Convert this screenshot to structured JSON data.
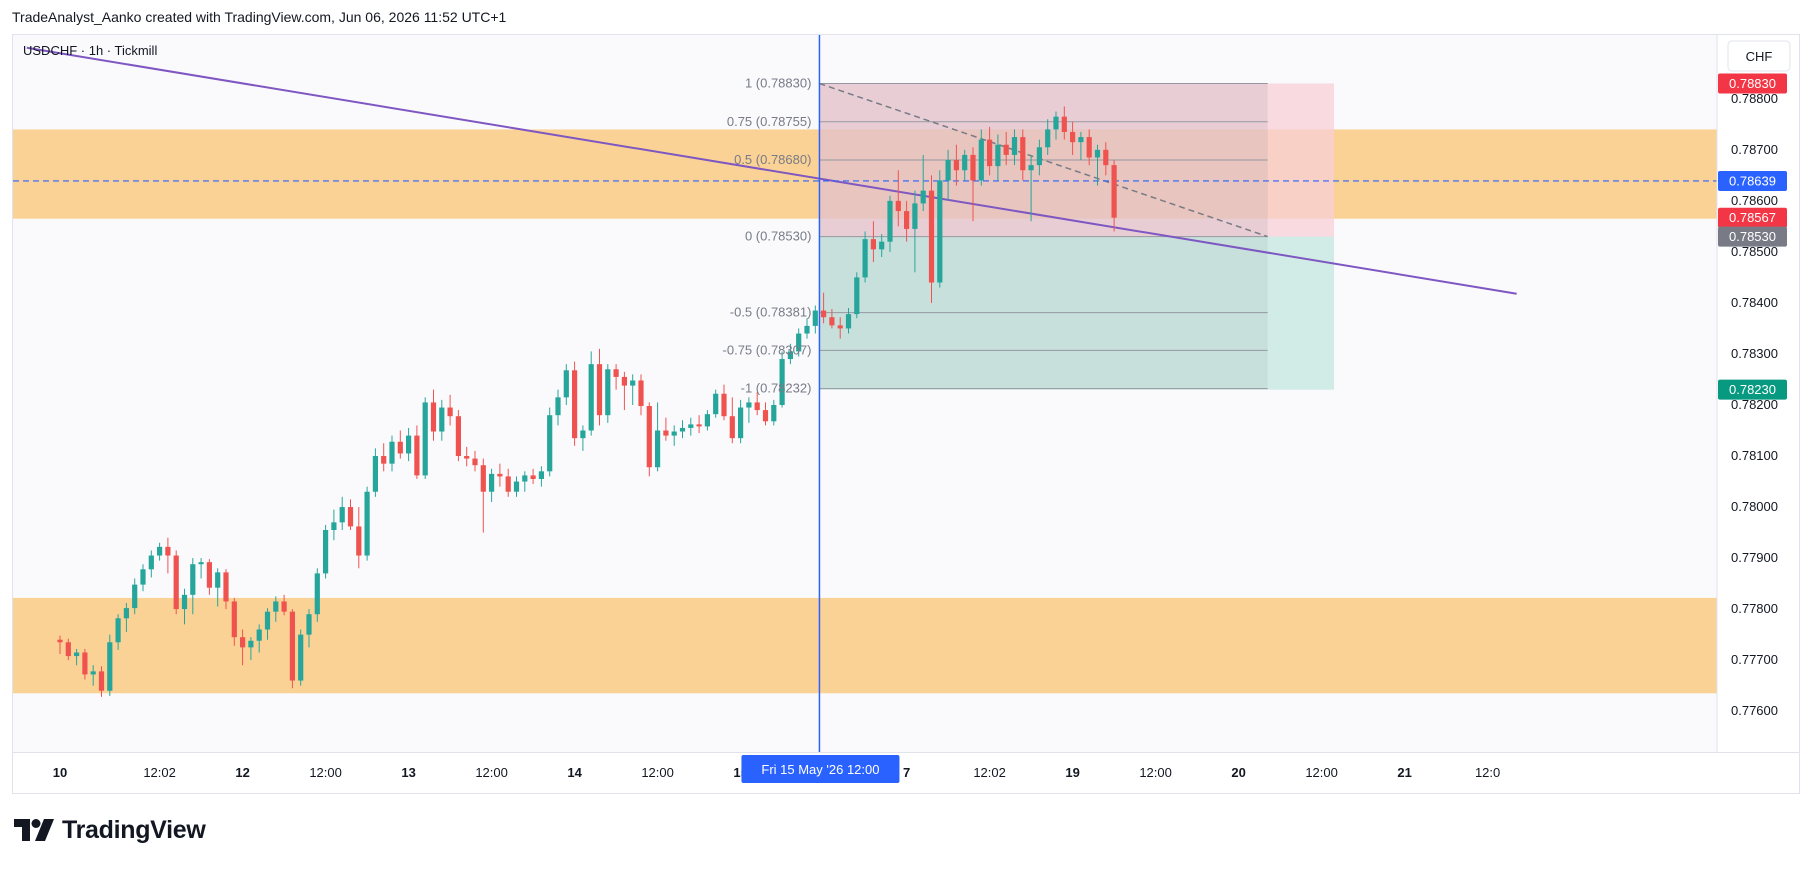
{
  "header": {
    "attribution": "TradeAnalyst_Aanko created with TradingView.com, Jun 06, 2026 11:52 UTC+1"
  },
  "brand": {
    "name": "TradingView"
  },
  "chart_data": {
    "type": "candlestick",
    "symbol_label": "USDCHF · 1h · Tickmill",
    "currency": "CHF",
    "ylim": [
      0.7752,
      0.78925
    ],
    "y_ticks": [
      "0.77600",
      "0.77700",
      "0.77800",
      "0.77900",
      "0.78000",
      "0.78100",
      "0.78200",
      "0.78300",
      "0.78400",
      "0.78500",
      "0.78600",
      "0.78700",
      "0.78800"
    ],
    "x_ticks": [
      {
        "label": "10",
        "bold": true,
        "x": 0
      },
      {
        "label": "12:02",
        "bold": false,
        "x": 12
      },
      {
        "label": "12",
        "bold": true,
        "x": 22
      },
      {
        "label": "12:00",
        "bold": false,
        "x": 32
      },
      {
        "label": "13",
        "bold": true,
        "x": 42
      },
      {
        "label": "12:00",
        "bold": false,
        "x": 52
      },
      {
        "label": "14",
        "bold": true,
        "x": 62
      },
      {
        "label": "12:00",
        "bold": false,
        "x": 72
      },
      {
        "label": "15",
        "bold": true,
        "x": 82
      },
      {
        "label": "7",
        "bold": true,
        "x": 102
      },
      {
        "label": "12:02",
        "bold": false,
        "x": 112
      },
      {
        "label": "19",
        "bold": true,
        "x": 122
      },
      {
        "label": "12:00",
        "bold": false,
        "x": 132
      },
      {
        "label": "20",
        "bold": true,
        "x": 142
      },
      {
        "label": "12:00",
        "bold": false,
        "x": 152
      },
      {
        "label": "21",
        "bold": true,
        "x": 162
      },
      {
        "label": "12:0",
        "bold": false,
        "x": 172
      }
    ],
    "crosshair": {
      "x": 91.5,
      "label": "Fri 15 May '26   12:00",
      "color": "#2962ff"
    },
    "current_price": {
      "value": 0.78639,
      "label": "0.78639",
      "color": "#2962ff"
    },
    "price_tags": [
      {
        "value": 0.7883,
        "label": "0.78830",
        "color": "#f23645"
      },
      {
        "value": 0.78567,
        "label": "0.78567",
        "color": "#f23645"
      },
      {
        "value": 0.7853,
        "label": "0.78530",
        "color": "#787b86"
      },
      {
        "value": 0.7823,
        "label": "0.78230",
        "color": "#089981"
      }
    ],
    "zones": [
      {
        "y1": 0.78565,
        "y2": 0.7874,
        "color": "#fbd296"
      },
      {
        "y1": 0.77635,
        "y2": 0.77822,
        "color": "#fbd296"
      }
    ],
    "position": {
      "x1": 91.5,
      "x2": 153.5,
      "entry": 0.7853,
      "stop": 0.7883,
      "target": 0.7823,
      "stop_color": "#f7cfd5",
      "target_color": "#c9e7e2"
    },
    "fib": {
      "x1": 91.5,
      "x2": 145.5,
      "levels": [
        {
          "value": 0.7883,
          "label": "1 (0.78830)"
        },
        {
          "value": 0.78755,
          "label": "0.75 (0.78755)"
        },
        {
          "value": 0.7868,
          "label": "0.5 (0.78680)"
        },
        {
          "value": 0.7853,
          "label": "0 (0.78530)"
        },
        {
          "value": 0.78381,
          "label": "-0.5 (0.78381)"
        },
        {
          "value": 0.78307,
          "label": "-0.75 (0.78307)"
        },
        {
          "value": 0.78232,
          "label": "-1 (0.78232)"
        }
      ]
    },
    "trendline": {
      "x1": -4,
      "y1": 0.789,
      "x2": 175.5,
      "y2": 0.78418,
      "color": "#7e57c2"
    },
    "dashed_trend": {
      "x1": 91.5,
      "y1": 0.7883,
      "x2": 145.5,
      "y2": 0.7853,
      "color": "#787b86"
    },
    "candles": [
      [
        0.7774,
        0.77748,
        0.77712,
        0.77735
      ],
      [
        0.77735,
        0.77742,
        0.777,
        0.77708
      ],
      [
        0.77708,
        0.77722,
        0.7769,
        0.77715
      ],
      [
        0.77715,
        0.77722,
        0.77662,
        0.77672
      ],
      [
        0.77672,
        0.7769,
        0.7765,
        0.77678
      ],
      [
        0.77678,
        0.77688,
        0.77628,
        0.7764
      ],
      [
        0.7764,
        0.7775,
        0.7763,
        0.77735
      ],
      [
        0.77735,
        0.7779,
        0.7772,
        0.77782
      ],
      [
        0.77782,
        0.77812,
        0.77755,
        0.77802
      ],
      [
        0.77802,
        0.7786,
        0.7779,
        0.77848
      ],
      [
        0.77848,
        0.77888,
        0.77835,
        0.77878
      ],
      [
        0.77878,
        0.77915,
        0.77862,
        0.77905
      ],
      [
        0.77905,
        0.7793,
        0.77895,
        0.77922
      ],
      [
        0.77922,
        0.7794,
        0.7787,
        0.77905
      ],
      [
        0.77905,
        0.77915,
        0.7779,
        0.778
      ],
      [
        0.778,
        0.7784,
        0.7777,
        0.77828
      ],
      [
        0.77828,
        0.779,
        0.7779,
        0.77888
      ],
      [
        0.77888,
        0.779,
        0.7786,
        0.77892
      ],
      [
        0.77892,
        0.77898,
        0.77828,
        0.77842
      ],
      [
        0.77842,
        0.7788,
        0.77805,
        0.77872
      ],
      [
        0.77872,
        0.77878,
        0.778,
        0.77815
      ],
      [
        0.77815,
        0.77822,
        0.77728,
        0.77745
      ],
      [
        0.77745,
        0.7776,
        0.7769,
        0.77725
      ],
      [
        0.77725,
        0.77745,
        0.777,
        0.77738
      ],
      [
        0.77738,
        0.7777,
        0.77715,
        0.7776
      ],
      [
        0.7776,
        0.77802,
        0.7774,
        0.77795
      ],
      [
        0.77795,
        0.77825,
        0.77775,
        0.77815
      ],
      [
        0.77815,
        0.77828,
        0.77788,
        0.77795
      ],
      [
        0.77795,
        0.778,
        0.77645,
        0.7766
      ],
      [
        0.7766,
        0.7776,
        0.7765,
        0.7775
      ],
      [
        0.7775,
        0.778,
        0.77725,
        0.7779
      ],
      [
        0.7779,
        0.7788,
        0.77775,
        0.7787
      ],
      [
        0.7787,
        0.77965,
        0.7786,
        0.77955
      ],
      [
        0.77955,
        0.77995,
        0.77935,
        0.7797
      ],
      [
        0.7797,
        0.7802,
        0.77955,
        0.78
      ],
      [
        0.78,
        0.78015,
        0.77955,
        0.77962
      ],
      [
        0.77962,
        0.78,
        0.7788,
        0.77905
      ],
      [
        0.77905,
        0.7804,
        0.77895,
        0.7803
      ],
      [
        0.7803,
        0.78115,
        0.7802,
        0.781
      ],
      [
        0.781,
        0.78125,
        0.7807,
        0.78085
      ],
      [
        0.78085,
        0.7814,
        0.7807,
        0.78128
      ],
      [
        0.78128,
        0.7815,
        0.78095,
        0.78105
      ],
      [
        0.78105,
        0.78155,
        0.7809,
        0.7814
      ],
      [
        0.7814,
        0.7816,
        0.78055,
        0.78062
      ],
      [
        0.78062,
        0.78215,
        0.78055,
        0.78205
      ],
      [
        0.78205,
        0.7823,
        0.7813,
        0.78148
      ],
      [
        0.78148,
        0.7821,
        0.7813,
        0.78195
      ],
      [
        0.78195,
        0.7822,
        0.7816,
        0.78178
      ],
      [
        0.78178,
        0.7819,
        0.7809,
        0.781
      ],
      [
        0.781,
        0.78118,
        0.7808,
        0.78095
      ],
      [
        0.78095,
        0.7811,
        0.7807,
        0.78082
      ],
      [
        0.78082,
        0.78095,
        0.7795,
        0.7803
      ],
      [
        0.7803,
        0.78075,
        0.7801,
        0.78065
      ],
      [
        0.78065,
        0.78085,
        0.7804,
        0.7806
      ],
      [
        0.7806,
        0.78075,
        0.7802,
        0.7803
      ],
      [
        0.7803,
        0.7806,
        0.7802,
        0.7805
      ],
      [
        0.7805,
        0.7807,
        0.7803,
        0.78062
      ],
      [
        0.78062,
        0.78075,
        0.78045,
        0.78055
      ],
      [
        0.78055,
        0.7808,
        0.7804,
        0.7807
      ],
      [
        0.7807,
        0.78195,
        0.7806,
        0.7818
      ],
      [
        0.7818,
        0.7823,
        0.7816,
        0.78215
      ],
      [
        0.78215,
        0.7828,
        0.782,
        0.78268
      ],
      [
        0.78268,
        0.78285,
        0.7812,
        0.78135
      ],
      [
        0.78135,
        0.7816,
        0.7811,
        0.7815
      ],
      [
        0.7815,
        0.78305,
        0.7814,
        0.7828
      ],
      [
        0.7828,
        0.7831,
        0.7816,
        0.7818
      ],
      [
        0.7818,
        0.7828,
        0.78165,
        0.7827
      ],
      [
        0.7827,
        0.7828,
        0.7823,
        0.78255
      ],
      [
        0.78255,
        0.78265,
        0.7819,
        0.78238
      ],
      [
        0.78238,
        0.7826,
        0.782,
        0.78248
      ],
      [
        0.78248,
        0.7826,
        0.7818,
        0.78198
      ],
      [
        0.78198,
        0.78205,
        0.7806,
        0.78078
      ],
      [
        0.78078,
        0.78205,
        0.7807,
        0.7815
      ],
      [
        0.7815,
        0.78175,
        0.7813,
        0.7814
      ],
      [
        0.7814,
        0.7816,
        0.7812,
        0.78148
      ],
      [
        0.78148,
        0.7817,
        0.78135,
        0.78155
      ],
      [
        0.78155,
        0.78175,
        0.7814,
        0.78162
      ],
      [
        0.78162,
        0.7818,
        0.78145,
        0.78158
      ],
      [
        0.78158,
        0.7819,
        0.7815,
        0.78182
      ],
      [
        0.78182,
        0.7823,
        0.78175,
        0.78222
      ],
      [
        0.78222,
        0.7824,
        0.7817,
        0.78178
      ],
      [
        0.78178,
        0.78215,
        0.78125,
        0.78135
      ],
      [
        0.78135,
        0.7821,
        0.78125,
        0.78195
      ],
      [
        0.78195,
        0.78215,
        0.78165,
        0.78205
      ],
      [
        0.78205,
        0.78225,
        0.7818,
        0.7819
      ],
      [
        0.7819,
        0.78205,
        0.7816,
        0.78168
      ],
      [
        0.78168,
        0.7821,
        0.7816,
        0.782
      ],
      [
        0.782,
        0.78305,
        0.78195,
        0.7829
      ],
      [
        0.7829,
        0.7832,
        0.7828,
        0.78305
      ],
      [
        0.78305,
        0.7835,
        0.78295,
        0.7834
      ],
      [
        0.7834,
        0.7837,
        0.7833,
        0.78355
      ],
      [
        0.78355,
        0.78395,
        0.7834,
        0.78385
      ],
      [
        0.78385,
        0.7842,
        0.7836,
        0.78372
      ],
      [
        0.78372,
        0.78388,
        0.7835,
        0.78356
      ],
      [
        0.78356,
        0.78372,
        0.7833,
        0.7835
      ],
      [
        0.7835,
        0.7839,
        0.7834,
        0.78378
      ],
      [
        0.78378,
        0.7846,
        0.7837,
        0.7845
      ],
      [
        0.7845,
        0.7854,
        0.7844,
        0.78525
      ],
      [
        0.78525,
        0.7856,
        0.7848,
        0.78505
      ],
      [
        0.78505,
        0.78535,
        0.7849,
        0.7852
      ],
      [
        0.7852,
        0.7861,
        0.785,
        0.786
      ],
      [
        0.786,
        0.7866,
        0.7855,
        0.7858
      ],
      [
        0.7858,
        0.786,
        0.7852,
        0.78545
      ],
      [
        0.78545,
        0.7862,
        0.7846,
        0.78595
      ],
      [
        0.78595,
        0.7869,
        0.7858,
        0.7862
      ],
      [
        0.7862,
        0.7865,
        0.784,
        0.7844
      ],
      [
        0.7844,
        0.7866,
        0.7843,
        0.7864
      ],
      [
        0.7864,
        0.787,
        0.786,
        0.7868
      ],
      [
        0.7868,
        0.7871,
        0.7863,
        0.7866
      ],
      [
        0.7866,
        0.787,
        0.7864,
        0.7869
      ],
      [
        0.7869,
        0.78705,
        0.7856,
        0.7864
      ],
      [
        0.7864,
        0.7874,
        0.7863,
        0.7872
      ],
      [
        0.7872,
        0.78745,
        0.7865,
        0.78668
      ],
      [
        0.78668,
        0.7873,
        0.7864,
        0.7871
      ],
      [
        0.7871,
        0.78735,
        0.7867,
        0.7869
      ],
      [
        0.7869,
        0.7874,
        0.7867,
        0.78725
      ],
      [
        0.78725,
        0.7874,
        0.7864,
        0.7866
      ],
      [
        0.7866,
        0.7869,
        0.7856,
        0.7867
      ],
      [
        0.7867,
        0.7872,
        0.7865,
        0.78705
      ],
      [
        0.78705,
        0.7876,
        0.7869,
        0.7874
      ],
      [
        0.7874,
        0.78775,
        0.7872,
        0.78765
      ],
      [
        0.78765,
        0.78785,
        0.7872,
        0.78735
      ],
      [
        0.78735,
        0.78755,
        0.7869,
        0.78715
      ],
      [
        0.78715,
        0.78735,
        0.7868,
        0.78725
      ],
      [
        0.78725,
        0.7874,
        0.7867,
        0.78685
      ],
      [
        0.78685,
        0.7871,
        0.7863,
        0.787
      ],
      [
        0.787,
        0.78715,
        0.7865,
        0.7867
      ],
      [
        0.7867,
        0.7868,
        0.7854,
        0.78567
      ]
    ]
  }
}
